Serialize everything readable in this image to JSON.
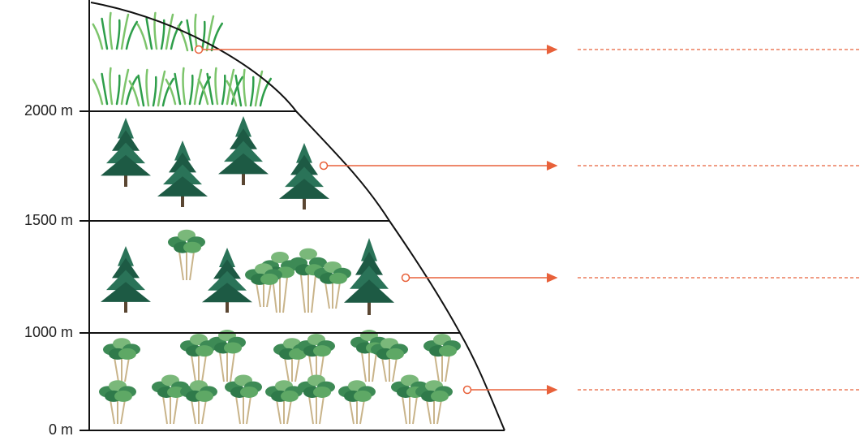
{
  "altitude_labels": [
    "2000 m",
    "1500 m",
    "1000 m",
    "0 m"
  ]
}
